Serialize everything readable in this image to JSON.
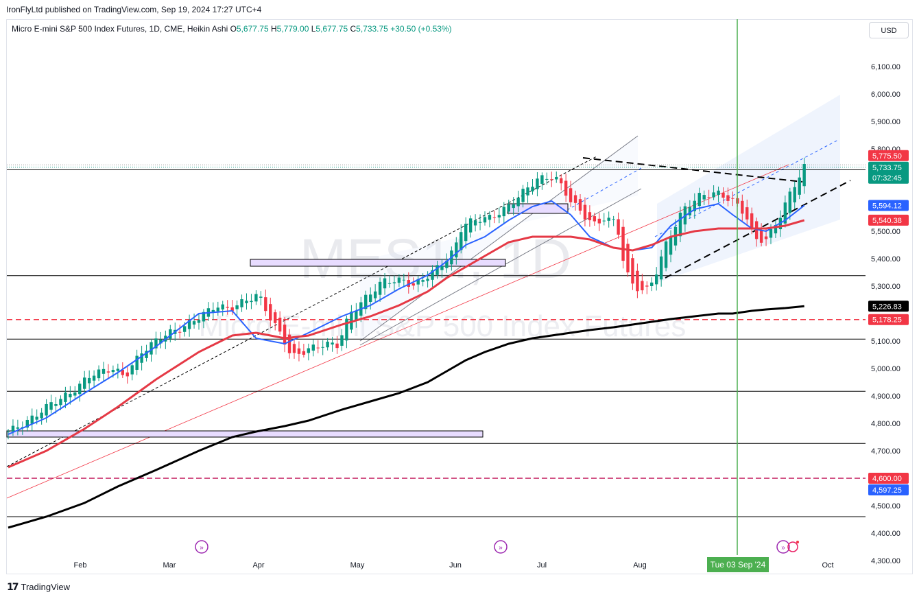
{
  "publisher": "IronFlyLtd published on TradingView.com, Sep 19, 2024 17:27 UTC+4",
  "legend": {
    "symbol": "Micro E-mini S&P 500 Index Futures, 1D, CME, Heikin Ashi",
    "open_label": "O",
    "open": "5,677.75",
    "high_label": "H",
    "high": "5,779.00",
    "low_label": "L",
    "low": "5,677.75",
    "close_label": "C",
    "close": "5,733.75",
    "change": "+30.50 (+0.53%)"
  },
  "currency_button": "USD",
  "watermark": {
    "ticker": "MES1!, 1D",
    "name": "Micro E-mini S&P 500 Index Futures"
  },
  "footer_brand": "TradingView",
  "colors": {
    "up": "#089981",
    "down": "#f23645",
    "ema_blue": "#2962ff",
    "ema_red": "#e53945",
    "ma_black": "#000000",
    "vline": "#4caf50"
  },
  "chart_data": {
    "type": "candlestick",
    "xaxis_ticks": [
      "Feb",
      "Mar",
      "Apr",
      "May",
      "Jun",
      "Jul",
      "Aug",
      "Sep",
      "Oct"
    ],
    "crosshair_date_label": "Tue 03 Sep '24",
    "yaxis_ticks": [
      "6,100.00",
      "6,000.00",
      "5,900.00",
      "5,800.00",
      "5,500.00",
      "5,400.00",
      "5,300.00",
      "5,100.00",
      "5,000.00",
      "4,900.00",
      "4,800.00",
      "4,700.00",
      "4,500.00",
      "4,400.00",
      "4,300.00"
    ],
    "ylim": [
      4280,
      6150
    ],
    "price_tags": [
      {
        "label": "5,775.50",
        "value": 5775.5,
        "color": "#f23645"
      },
      {
        "label": "5,733.75",
        "sub": "07:32:45",
        "value": 5733.75,
        "color": "#089981"
      },
      {
        "label": "5,594.12",
        "value": 5594.12,
        "color": "#2962ff"
      },
      {
        "label": "5,540.38",
        "value": 5540.38,
        "color": "#f23645"
      },
      {
        "label": "5,226.83",
        "value": 5226.83,
        "color": "#000000"
      },
      {
        "label": "5,178.25",
        "value": 5178.25,
        "color": "#f23645"
      },
      {
        "label": "4,600.00",
        "value": 4600,
        "color": "#f23645"
      },
      {
        "label": "4,597.25",
        "value": 4597.25,
        "color": "#2962ff"
      }
    ],
    "horizontal_levels": [
      5724,
      5338,
      5107,
      4917,
      4727,
      4460
    ],
    "dashed_levels": [
      5178.25,
      4600
    ],
    "series": [
      {
        "name": "EMA 20",
        "color": "#2962ff",
        "points": [
          [
            0,
            4760
          ],
          [
            8,
            4820
          ],
          [
            16,
            4910
          ],
          [
            23,
            4985
          ],
          [
            31,
            5080
          ],
          [
            40,
            5200
          ],
          [
            47,
            5210
          ],
          [
            52,
            5110
          ],
          [
            58,
            5090
          ],
          [
            63,
            5130
          ],
          [
            70,
            5190
          ],
          [
            76,
            5230
          ],
          [
            82,
            5290
          ],
          [
            88,
            5340
          ],
          [
            92,
            5390
          ],
          [
            96,
            5450
          ],
          [
            100,
            5480
          ],
          [
            105,
            5540
          ],
          [
            110,
            5590
          ],
          [
            114,
            5610
          ],
          [
            118,
            5560
          ],
          [
            122,
            5480
          ],
          [
            127,
            5440
          ],
          [
            131,
            5430
          ],
          [
            135,
            5440
          ],
          [
            139,
            5520
          ],
          [
            144,
            5580
          ],
          [
            149,
            5600
          ],
          [
            152,
            5560
          ],
          [
            156,
            5510
          ],
          [
            159,
            5500
          ],
          [
            163,
            5540
          ],
          [
            167,
            5594
          ]
        ]
      },
      {
        "name": "EMA 50",
        "color": "#e53945",
        "points": [
          [
            0,
            4640
          ],
          [
            8,
            4700
          ],
          [
            16,
            4780
          ],
          [
            23,
            4860
          ],
          [
            31,
            4960
          ],
          [
            40,
            5060
          ],
          [
            47,
            5120
          ],
          [
            52,
            5130
          ],
          [
            58,
            5110
          ],
          [
            63,
            5120
          ],
          [
            70,
            5160
          ],
          [
            76,
            5190
          ],
          [
            82,
            5230
          ],
          [
            88,
            5280
          ],
          [
            92,
            5330
          ],
          [
            96,
            5370
          ],
          [
            100,
            5410
          ],
          [
            105,
            5460
          ],
          [
            110,
            5480
          ],
          [
            114,
            5480
          ],
          [
            118,
            5480
          ],
          [
            122,
            5470
          ],
          [
            127,
            5440
          ],
          [
            131,
            5430
          ],
          [
            135,
            5450
          ],
          [
            139,
            5480
          ],
          [
            144,
            5500
          ],
          [
            149,
            5510
          ],
          [
            152,
            5510
          ],
          [
            156,
            5510
          ],
          [
            159,
            5510
          ],
          [
            163,
            5520
          ],
          [
            167,
            5540
          ]
        ]
      },
      {
        "name": "MA 200",
        "color": "#000000",
        "points": [
          [
            0,
            4420
          ],
          [
            8,
            4460
          ],
          [
            16,
            4510
          ],
          [
            23,
            4570
          ],
          [
            31,
            4630
          ],
          [
            40,
            4700
          ],
          [
            47,
            4750
          ],
          [
            52,
            4770
          ],
          [
            58,
            4790
          ],
          [
            63,
            4810
          ],
          [
            70,
            4850
          ],
          [
            76,
            4880
          ],
          [
            82,
            4910
          ],
          [
            88,
            4950
          ],
          [
            92,
            4990
          ],
          [
            96,
            5030
          ],
          [
            100,
            5060
          ],
          [
            105,
            5090
          ],
          [
            110,
            5110
          ],
          [
            114,
            5120
          ],
          [
            118,
            5130
          ],
          [
            122,
            5140
          ],
          [
            127,
            5150
          ],
          [
            131,
            5160
          ],
          [
            135,
            5170
          ],
          [
            139,
            5180
          ],
          [
            144,
            5190
          ],
          [
            149,
            5200
          ],
          [
            152,
            5200
          ],
          [
            156,
            5210
          ],
          [
            159,
            5215
          ],
          [
            163,
            5220
          ],
          [
            167,
            5227
          ]
        ]
      }
    ],
    "candles_hint": "Daily Heikin Ashi candles from mid-Jan to Sep 19 2024, ranging ~4760 to 5779"
  }
}
